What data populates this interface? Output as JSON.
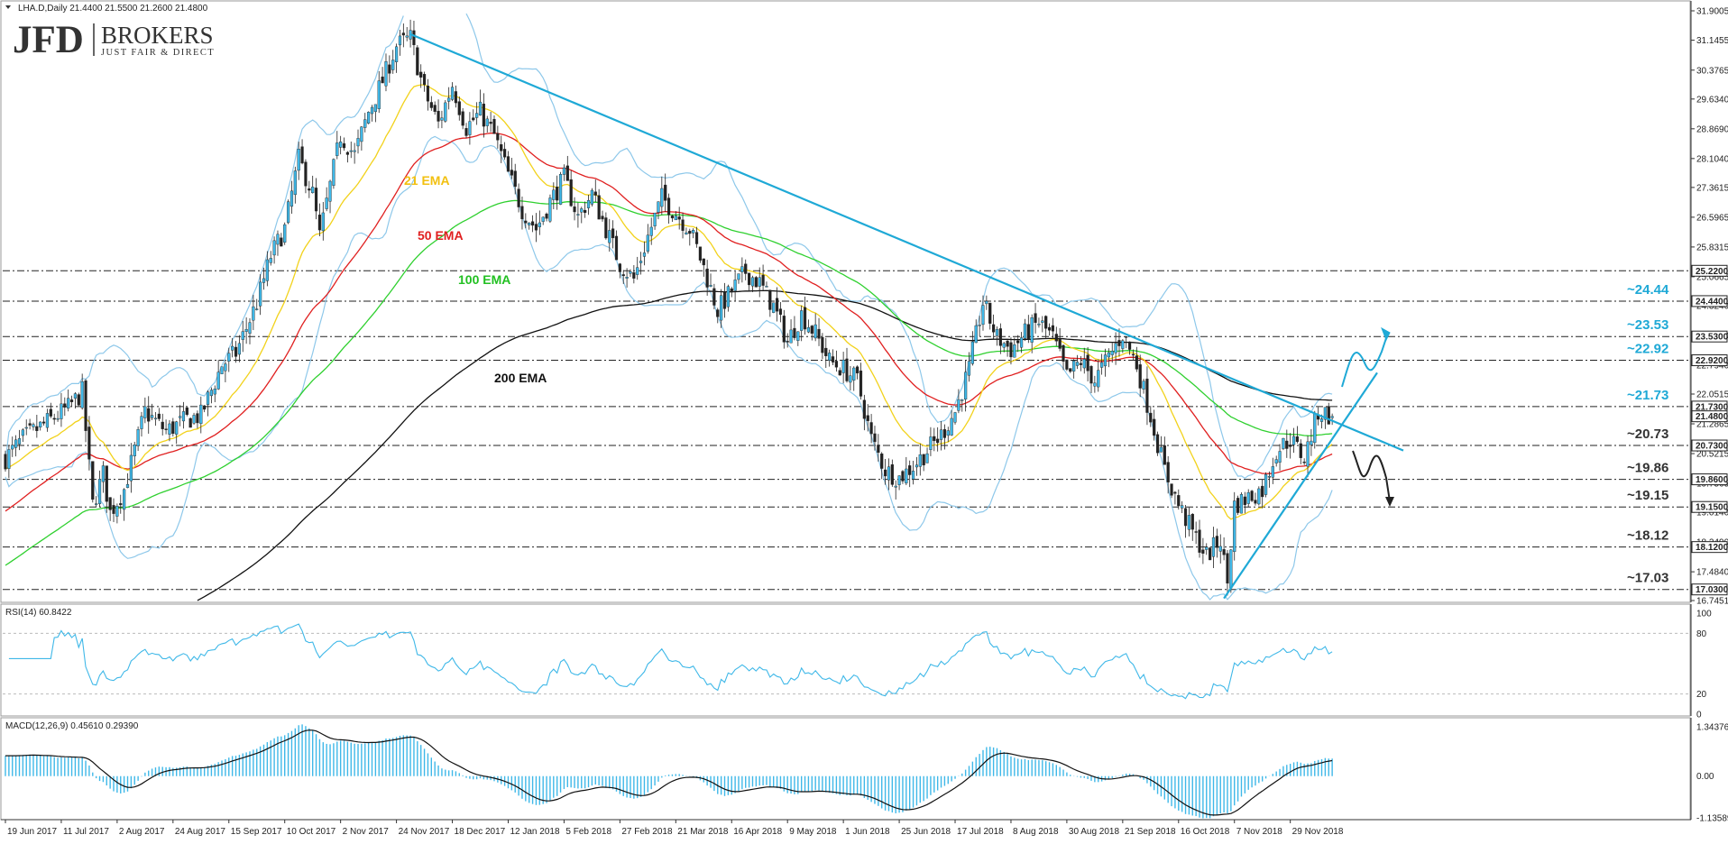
{
  "header": {
    "symbol_line": "LHA.D,Daily  21.4400 21.5500 21.2600 21.4800"
  },
  "logo": {
    "mark": "JFD",
    "brand": "BROKERS",
    "tagline": "JUST FAIR & DIRECT"
  },
  "colors": {
    "ema21": "#f2d21b",
    "ema50": "#e02020",
    "ema100": "#2fd02f",
    "ema200": "#111111",
    "bollinger": "#8ec8ea",
    "trendline": "#1fa9d6",
    "candle_up": "#3fb8e8",
    "candle_down": "#222222"
  },
  "chart_data": [
    {
      "type": "line",
      "panel": "price",
      "ylim": [
        16.7451,
        31.9005
      ],
      "x_axis_labels": [
        "19 Jun 2017",
        "11 Jul 2017",
        "2 Aug 2017",
        "24 Aug 2017",
        "15 Sep 2017",
        "10 Oct 2017",
        "2 Nov 2017",
        "24 Nov 2017",
        "18 Dec 2017",
        "12 Jan 2018",
        "5 Feb 2018",
        "27 Feb 2018",
        "21 Mar 2018",
        "16 Apr 2018",
        "9 May 2018",
        "1 Jun 2018",
        "25 Jun 2018",
        "17 Jul 2018",
        "8 Aug 2018",
        "30 Aug 2018",
        "21 Sep 2018",
        "16 Oct 2018",
        "7 Nov 2018",
        "29 Nov 2018"
      ],
      "y_ticks": [
        "31.9005",
        "31.1455",
        "30.3765",
        "29.6340",
        "28.8690",
        "28.1040",
        "27.3615",
        "26.5965",
        "25.8315",
        "25.0665",
        "24.3240",
        "23.5590",
        "22.7940",
        "22.0515",
        "21.2865",
        "20.5215",
        "19.7565",
        "19.0140",
        "18.2490",
        "17.4840",
        "16.7451"
      ],
      "price_labels": [
        "25.2200",
        "24.4400",
        "23.5300",
        "22.9200",
        "21.7300",
        "21.4800",
        "20.7300",
        "19.8600",
        "19.1500",
        "18.1200",
        "17.0300"
      ],
      "levels": [
        {
          "value": 25.22,
          "label": ""
        },
        {
          "value": 24.44,
          "label": "~24.44"
        },
        {
          "value": 23.53,
          "label": "~23.53"
        },
        {
          "value": 22.92,
          "label": "~22.92"
        },
        {
          "value": 21.73,
          "label": "~21.73"
        },
        {
          "value": 20.73,
          "label": "~20.73"
        },
        {
          "value": 19.86,
          "label": "~19.86"
        },
        {
          "value": 19.15,
          "label": "~19.15"
        },
        {
          "value": 18.12,
          "label": "~18.12"
        },
        {
          "value": 17.03,
          "label": "~17.03"
        }
      ],
      "series": [
        {
          "name": "21 EMA"
        },
        {
          "name": "50 EMA"
        },
        {
          "name": "100 EMA"
        },
        {
          "name": "200 EMA"
        }
      ]
    },
    {
      "type": "line",
      "panel": "rsi",
      "title": "RSI(14) 60.8422",
      "ylim": [
        0,
        100
      ],
      "y_ticks": [
        "100",
        "80",
        "20",
        "0"
      ]
    },
    {
      "type": "bar",
      "panel": "macd",
      "title": "MACD(12,26,9) 0.45610 0.29390",
      "ylim": [
        -1.13589,
        1.34376
      ],
      "y_ticks": [
        "1.34376",
        "0.00",
        "-1.13589"
      ]
    }
  ]
}
